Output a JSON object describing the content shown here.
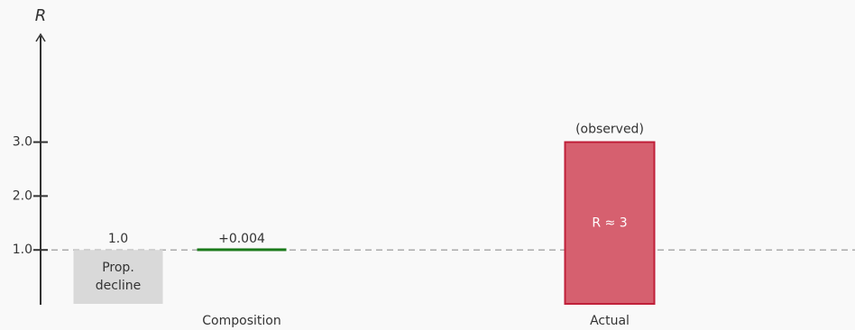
{
  "chart_data": {
    "type": "waterfall",
    "y_label": "R",
    "ylim": [
      0,
      5
    ],
    "yticks": [
      {
        "value": 1,
        "label": "1.0"
      },
      {
        "value": 2,
        "label": "2.0"
      },
      {
        "value": 3,
        "label": "3.0"
      }
    ],
    "reference_line": 1,
    "steps": [
      {
        "name": "Prop. decline",
        "value": 1,
        "value_label": "1.0",
        "color": "#d9d9d9"
      },
      {
        "category": "Composition",
        "value": 0.004,
        "value_label": "+0.004",
        "color": "#1a7a1a"
      },
      {
        "category": "Actual",
        "value": 3,
        "annotation": "(observed)",
        "inner_label": "R ≈ 3",
        "color": "#d6606f",
        "total": true
      }
    ]
  }
}
